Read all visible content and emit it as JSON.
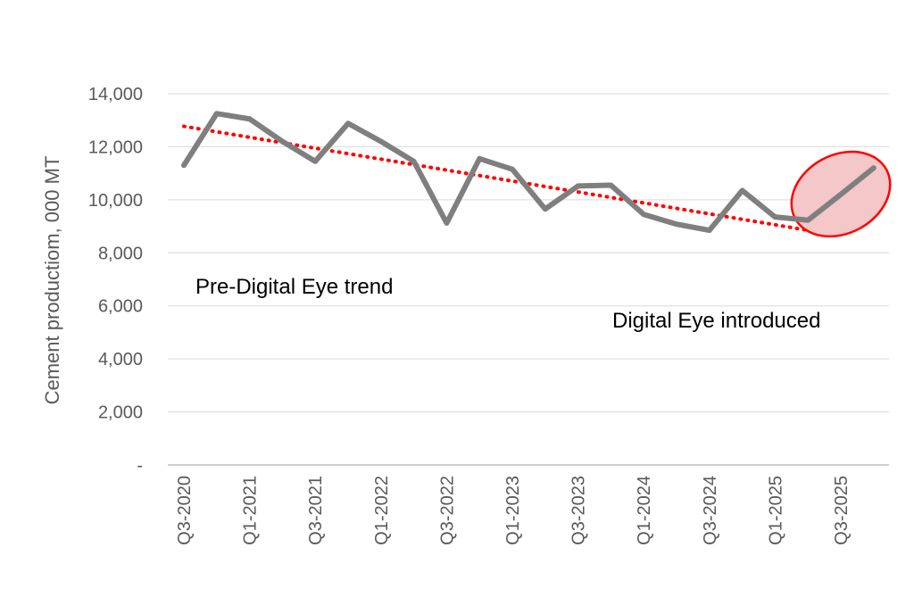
{
  "chart_data": {
    "type": "line",
    "title": "",
    "xlabel": "",
    "ylabel": "Cement productiom, 000 MT",
    "ylim": [
      0,
      14000
    ],
    "ytick_values": [
      0,
      2000,
      4000,
      6000,
      8000,
      10000,
      12000,
      14000
    ],
    "ytick_labels": [
      "-",
      "2,000",
      "4,000",
      "6,000",
      "8,000",
      "10,000",
      "12,000",
      "14,000"
    ],
    "grid": "horizontal",
    "x": [
      "Q3-2020",
      "Q4-2020",
      "Q1-2021",
      "Q2-2021",
      "Q3-2021",
      "Q4-2021",
      "Q1-2022",
      "Q2-2022",
      "Q3-2022",
      "Q4-2022",
      "Q1-2023",
      "Q2-2023",
      "Q3-2023",
      "Q4-2023",
      "Q1-2024",
      "Q2-2024",
      "Q3-2024",
      "Q4-2024",
      "Q1-2025",
      "Q2-2025",
      "Q3-2025",
      "Q4-2025"
    ],
    "xtick_labels": [
      "Q3-2020",
      "Q1-2021",
      "Q3-2021",
      "Q1-2022",
      "Q3-2022",
      "Q1-2023",
      "Q3-2023",
      "Q1-2024",
      "Q3-2024",
      "Q1-2025",
      "Q3-2025"
    ],
    "series": [
      {
        "values": [
          11300,
          13250,
          13050,
          12200,
          11450,
          12880,
          12200,
          11450,
          9120,
          11550,
          11150,
          9650,
          10520,
          10550,
          9450,
          9080,
          8850,
          10350,
          9350,
          9230,
          10200,
          11200
        ],
        "color": "#7f7f7f"
      }
    ],
    "trendline": {
      "style": "dotted",
      "color": "#ff0000",
      "x_start": "Q3-2020",
      "x_end": "Q2-2025",
      "y_start": 12770,
      "y_end": 8850
    },
    "highlight": {
      "shape": "ellipse",
      "color": "#ff0000",
      "fill": "#f4c7c8",
      "x_start": "Q2-2025",
      "x_end": "Q4-2025"
    },
    "annotations": [
      {
        "text": "Pre-Digital Eye trend"
      },
      {
        "text": "Digital Eye introduced"
      }
    ]
  }
}
